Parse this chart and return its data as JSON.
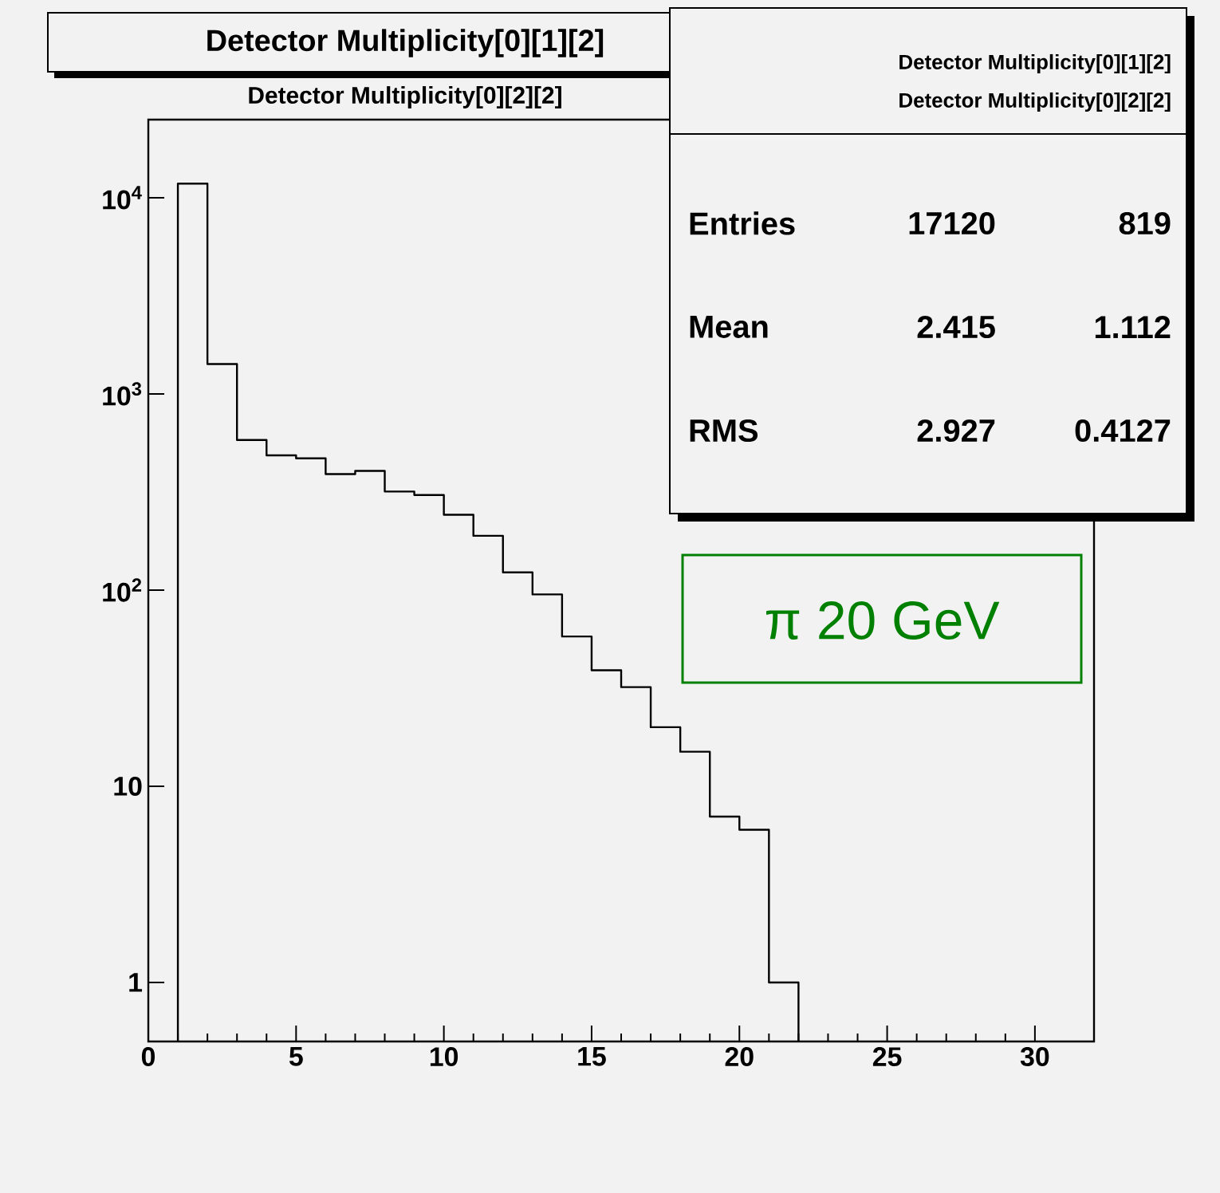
{
  "chart_data": {
    "type": "histogram",
    "title": "Detector Multiplicity[0][1][2]",
    "subtitle": "Detector Multiplicity[0][2][2]",
    "bins": [
      1,
      2,
      3,
      4,
      5,
      6,
      7,
      8,
      9,
      10,
      11,
      12,
      13,
      14,
      15,
      16,
      17,
      18,
      19,
      20,
      21,
      22
    ],
    "values": [
      11800,
      1420,
      582,
      486,
      469,
      390,
      405,
      318,
      305,
      242,
      189,
      123,
      95,
      58,
      39,
      32,
      20,
      15,
      7,
      6,
      1
    ],
    "color": "#000000",
    "log": true,
    "grid": false,
    "xlim": [
      0,
      32
    ],
    "xticks": [
      0,
      5,
      10,
      15,
      20,
      25,
      30
    ],
    "ylim": [
      0.5,
      25000
    ],
    "yticks": [
      1,
      10,
      {
        "value": 100,
        "label": "10$^{2}$"
      },
      {
        "value": 1000,
        "label": "10$^{3}$"
      },
      {
        "value": 10000,
        "label": "10$^{4}$"
      }
    ],
    "annotations": [
      "Entries",
      "Mean",
      "RMS",
      "17120",
      "2.415",
      "2.927",
      "819",
      "1.112",
      "0.4127",
      "π 20 GeV"
    ]
  }
}
